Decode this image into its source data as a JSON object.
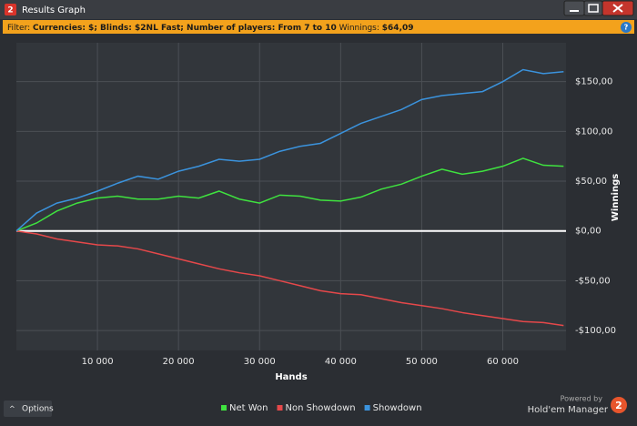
{
  "window_title": "Results Graph",
  "filter": {
    "label": "Filter:",
    "items": "Currencies: $; Blinds: $2NL Fast; Number of players: From 7 to 10",
    "winnings_label": "Winnings:",
    "winnings_value": "$64,09"
  },
  "options_button": "Options",
  "powered_by": "Powered by",
  "brand": "Hold'em Manager",
  "chart_data": {
    "type": "line",
    "x_label": "Hands",
    "y_label": "Winnings",
    "x": [
      0,
      2500,
      5000,
      7500,
      10000,
      12500,
      15000,
      17500,
      20000,
      22500,
      25000,
      27500,
      30000,
      32500,
      35000,
      37500,
      40000,
      42500,
      45000,
      47500,
      50000,
      52500,
      55000,
      57500,
      60000,
      62500,
      65000,
      67500
    ],
    "series": [
      {
        "name": "Net Won",
        "color": "#3fe23f",
        "values": [
          0,
          8,
          20,
          28,
          33,
          35,
          32,
          32,
          35,
          33,
          40,
          32,
          28,
          36,
          35,
          31,
          30,
          34,
          42,
          47,
          55,
          62,
          57,
          60,
          65,
          73,
          66,
          65
        ]
      },
      {
        "name": "Non Showdown",
        "color": "#e5484a",
        "values": [
          0,
          -3,
          -8,
          -11,
          -14,
          -15,
          -18,
          -23,
          -28,
          -33,
          -38,
          -42,
          -45,
          -50,
          -55,
          -60,
          -63,
          -64,
          -68,
          -72,
          -75,
          -78,
          -82,
          -85,
          -88,
          -91,
          -92,
          -95
        ]
      },
      {
        "name": "Showdown",
        "color": "#3b93dd",
        "values": [
          0,
          18,
          28,
          33,
          40,
          48,
          55,
          52,
          60,
          65,
          72,
          70,
          72,
          80,
          85,
          88,
          98,
          108,
          115,
          122,
          132,
          136,
          138,
          140,
          150,
          162,
          158,
          160
        ]
      }
    ],
    "xlim": [
      0,
      67800
    ],
    "ylim": [
      -120,
      189
    ],
    "xticks": [
      {
        "value": 10000,
        "label": "10 000"
      },
      {
        "value": 20000,
        "label": "20 000"
      },
      {
        "value": 30000,
        "label": "30 000"
      },
      {
        "value": 40000,
        "label": "40 000"
      },
      {
        "value": 50000,
        "label": "50 000"
      },
      {
        "value": 60000,
        "label": "60 000"
      }
    ],
    "yticks": [
      {
        "value": -100,
        "label": "-$100,00"
      },
      {
        "value": -50,
        "label": "-$50,00"
      },
      {
        "value": 0,
        "label": "$0,00"
      },
      {
        "value": 50,
        "label": "$50,00"
      },
      {
        "value": 100,
        "label": "$100,00"
      },
      {
        "value": 150,
        "label": "$150,00"
      }
    ],
    "grid": true
  }
}
